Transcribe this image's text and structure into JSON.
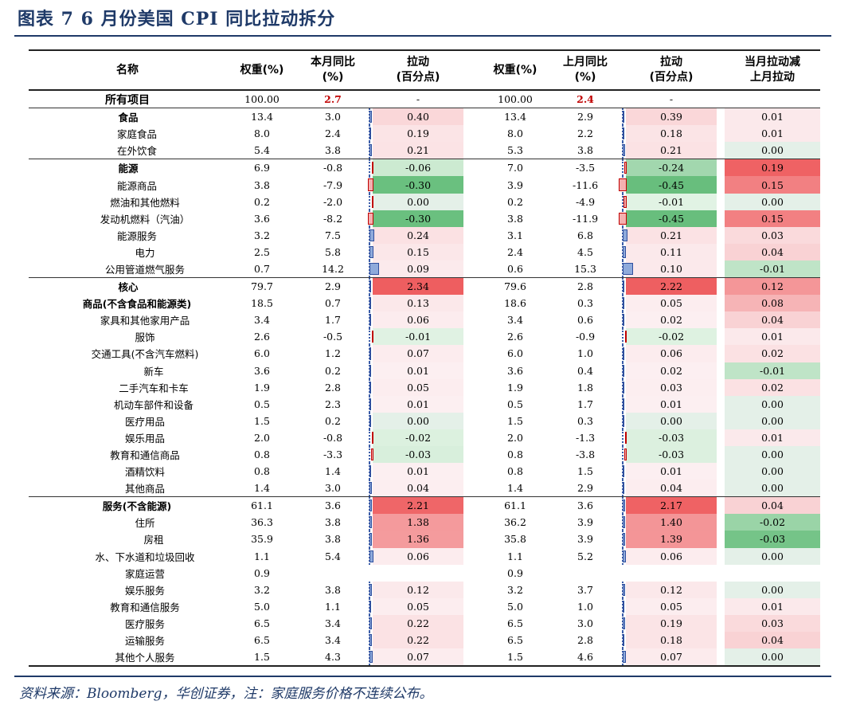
{
  "title": "图表 7   6 月份美国 CPI 同比拉动拆分",
  "source": "资料来源：Bloomberg，华创证券，注：家庭服务价格不连续公布。",
  "headers": {
    "name": "名称",
    "w1": "权重(%)",
    "yoy1": "本月同比\n(%)",
    "pull1": "拉动\n(百分点)",
    "w2": "权重(%)",
    "yoy2": "上月同比\n(%)",
    "pull2": "拉动\n(百分点)",
    "diff": "当月拉动减\n上月拉动"
  },
  "rows": [
    {
      "name": "所有项目",
      "level": "all",
      "w1": "100.00",
      "y1": "2.7",
      "p1": "-",
      "w2": "100.00",
      "y2": "2.4",
      "p2": "-",
      "d": ""
    },
    {
      "name": "食品",
      "level": 0,
      "sect": true,
      "w1": "13.4",
      "y1": "3.0",
      "p1": "0.40",
      "w2": "13.4",
      "y2": "2.9",
      "p2": "0.39",
      "d": "0.01"
    },
    {
      "name": "家庭食品",
      "level": 1,
      "w1": "8.0",
      "y1": "2.4",
      "p1": "0.19",
      "w2": "8.0",
      "y2": "2.2",
      "p2": "0.18",
      "d": "0.01"
    },
    {
      "name": "在外饮食",
      "level": 1,
      "w1": "5.4",
      "y1": "3.8",
      "p1": "0.21",
      "w2": "5.3",
      "y2": "3.8",
      "p2": "0.21",
      "d": "0.00"
    },
    {
      "name": "能源",
      "level": 0,
      "sect": true,
      "w1": "6.9",
      "y1": "-0.8",
      "p1": "-0.06",
      "w2": "7.0",
      "y2": "-3.5",
      "p2": "-0.24",
      "d": "0.19"
    },
    {
      "name": "能源商品",
      "level": 1,
      "w1": "3.8",
      "y1": "-7.9",
      "p1": "-0.30",
      "w2": "3.9",
      "y2": "-11.6",
      "p2": "-0.45",
      "d": "0.15"
    },
    {
      "name": "燃油和其他燃料",
      "level": 2,
      "w1": "0.2",
      "y1": "-2.0",
      "p1": "0.00",
      "w2": "0.2",
      "y2": "-4.9",
      "p2": "-0.01",
      "d": "0.00"
    },
    {
      "name": "发动机燃料（汽油）",
      "level": 2,
      "w1": "3.6",
      "y1": "-8.2",
      "p1": "-0.30",
      "w2": "3.8",
      "y2": "-11.9",
      "p2": "-0.45",
      "d": "0.15"
    },
    {
      "name": "能源服务",
      "level": 1,
      "w1": "3.2",
      "y1": "7.5",
      "p1": "0.24",
      "w2": "3.1",
      "y2": "6.8",
      "p2": "0.21",
      "d": "0.03"
    },
    {
      "name": "电力",
      "level": 2,
      "w1": "2.5",
      "y1": "5.8",
      "p1": "0.15",
      "w2": "2.4",
      "y2": "4.5",
      "p2": "0.11",
      "d": "0.04"
    },
    {
      "name": "公用管道燃气服务",
      "level": 2,
      "w1": "0.7",
      "y1": "14.2",
      "p1": "0.09",
      "w2": "0.6",
      "y2": "15.3",
      "p2": "0.10",
      "d": "-0.01"
    },
    {
      "name": "核心",
      "level": 0,
      "sect": true,
      "w1": "79.7",
      "y1": "2.9",
      "p1": "2.34",
      "w2": "79.6",
      "y2": "2.8",
      "p2": "2.22",
      "d": "0.12"
    },
    {
      "name": "商品(不含食品和能源类)",
      "level": 1,
      "bold": true,
      "w1": "18.5",
      "y1": "0.7",
      "p1": "0.13",
      "w2": "18.6",
      "y2": "0.3",
      "p2": "0.05",
      "d": "0.08"
    },
    {
      "name": "家具和其他家用产品",
      "level": 2,
      "w1": "3.4",
      "y1": "1.7",
      "p1": "0.06",
      "w2": "3.4",
      "y2": "0.6",
      "p2": "0.02",
      "d": "0.04"
    },
    {
      "name": "服饰",
      "level": 2,
      "w1": "2.6",
      "y1": "-0.5",
      "p1": "-0.01",
      "w2": "2.6",
      "y2": "-0.9",
      "p2": "-0.02",
      "d": "0.01"
    },
    {
      "name": "交通工具(不含汽车燃料)",
      "level": 2,
      "w1": "6.0",
      "y1": "1.2",
      "p1": "0.07",
      "w2": "6.0",
      "y2": "1.0",
      "p2": "0.06",
      "d": "0.02"
    },
    {
      "name": "新车",
      "level": 3,
      "w1": "3.6",
      "y1": "0.2",
      "p1": "0.01",
      "w2": "3.6",
      "y2": "0.4",
      "p2": "0.02",
      "d": "-0.01"
    },
    {
      "name": "二手汽车和卡车",
      "level": 3,
      "w1": "1.9",
      "y1": "2.8",
      "p1": "0.05",
      "w2": "1.9",
      "y2": "1.8",
      "p2": "0.03",
      "d": "0.02"
    },
    {
      "name": "机动车部件和设备",
      "level": 3,
      "w1": "0.5",
      "y1": "2.3",
      "p1": "0.01",
      "w2": "0.5",
      "y2": "1.7",
      "p2": "0.01",
      "d": "0.00"
    },
    {
      "name": "医疗用品",
      "level": 2,
      "w1": "1.5",
      "y1": "0.2",
      "p1": "0.00",
      "w2": "1.5",
      "y2": "0.3",
      "p2": "0.00",
      "d": "0.00"
    },
    {
      "name": "娱乐用品",
      "level": 2,
      "w1": "2.0",
      "y1": "-0.8",
      "p1": "-0.02",
      "w2": "2.0",
      "y2": "-1.3",
      "p2": "-0.03",
      "d": "0.01"
    },
    {
      "name": "教育和通信商品",
      "level": 2,
      "w1": "0.8",
      "y1": "-3.3",
      "p1": "-0.03",
      "w2": "0.8",
      "y2": "-3.8",
      "p2": "-0.03",
      "d": "0.00"
    },
    {
      "name": "酒精饮料",
      "level": 2,
      "w1": "0.8",
      "y1": "1.4",
      "p1": "0.01",
      "w2": "0.8",
      "y2": "1.5",
      "p2": "0.01",
      "d": "0.00"
    },
    {
      "name": "其他商品",
      "level": 2,
      "w1": "1.4",
      "y1": "3.0",
      "p1": "0.04",
      "w2": "1.4",
      "y2": "2.9",
      "p2": "0.04",
      "d": "0.00"
    },
    {
      "name": "服务(不含能源)",
      "level": 1,
      "bold": true,
      "sect": true,
      "w1": "61.1",
      "y1": "3.6",
      "p1": "2.21",
      "w2": "61.1",
      "y2": "3.6",
      "p2": "2.17",
      "d": "0.04"
    },
    {
      "name": "住所",
      "level": 2,
      "w1": "36.3",
      "y1": "3.8",
      "p1": "1.38",
      "w2": "36.2",
      "y2": "3.9",
      "p2": "1.40",
      "d": "-0.02"
    },
    {
      "name": "房租",
      "level": 3,
      "w1": "35.9",
      "y1": "3.8",
      "p1": "1.36",
      "w2": "35.8",
      "y2": "3.9",
      "p2": "1.39",
      "d": "-0.03"
    },
    {
      "name": "水、下水道和垃圾回收",
      "level": 2,
      "w1": "1.1",
      "y1": "5.4",
      "p1": "0.06",
      "w2": "1.1",
      "y2": "5.2",
      "p2": "0.06",
      "d": "0.00"
    },
    {
      "name": "家庭运营",
      "level": 2,
      "w1": "0.9",
      "y1": "",
      "p1": "",
      "w2": "0.9",
      "y2": "",
      "p2": "",
      "d": ""
    },
    {
      "name": "娱乐服务",
      "level": 2,
      "w1": "3.2",
      "y1": "3.8",
      "p1": "0.12",
      "w2": "3.2",
      "y2": "3.7",
      "p2": "0.12",
      "d": "0.00"
    },
    {
      "name": "教育和通信服务",
      "level": 2,
      "w1": "5.0",
      "y1": "1.1",
      "p1": "0.05",
      "w2": "5.0",
      "y2": "1.0",
      "p2": "0.05",
      "d": "0.01"
    },
    {
      "name": "医疗服务",
      "level": 2,
      "w1": "6.5",
      "y1": "3.4",
      "p1": "0.22",
      "w2": "6.5",
      "y2": "3.0",
      "p2": "0.19",
      "d": "0.03"
    },
    {
      "name": "运输服务",
      "level": 2,
      "w1": "6.5",
      "y1": "3.4",
      "p1": "0.22",
      "w2": "6.5",
      "y2": "2.8",
      "p2": "0.18",
      "d": "0.04"
    },
    {
      "name": "其他个人服务",
      "level": 2,
      "w1": "1.5",
      "y1": "4.3",
      "p1": "0.07",
      "w2": "1.5",
      "y2": "4.6",
      "p2": "0.07",
      "d": "0.00"
    }
  ]
}
